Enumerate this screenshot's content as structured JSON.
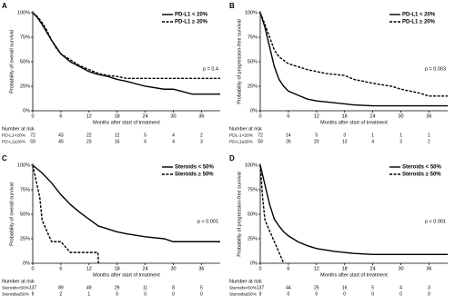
{
  "chart_data": [
    {
      "type": "line",
      "panel": "A",
      "ylabel": "Probability of overall survival",
      "xlabel": "Months after start of treatment",
      "xlim": [
        0,
        40
      ],
      "ylim": [
        0,
        100
      ],
      "xticks": [
        0,
        6,
        12,
        18,
        24,
        30,
        36
      ],
      "yticks": [
        {
          "value": 0,
          "label": "0%"
        },
        {
          "value": 25,
          "label": "25%"
        },
        {
          "value": 50,
          "label": "50%"
        },
        {
          "value": 75,
          "label": "75%"
        },
        {
          "value": 100,
          "label": "100%"
        }
      ],
      "legend": "upper right",
      "annotation": "p = 0.4",
      "series": [
        {
          "name": "PD-L1 < 20%",
          "color": "#000000",
          "dash": "solid",
          "x": [
            0,
            1,
            2,
            3,
            4,
            5,
            6,
            8,
            10,
            12,
            14,
            16,
            18,
            20,
            24,
            28,
            30,
            34,
            36,
            40
          ],
          "values": [
            100,
            95,
            88,
            80,
            72,
            65,
            58,
            50,
            45,
            40,
            37,
            35,
            32,
            30,
            25,
            22,
            22,
            17,
            17,
            17
          ]
        },
        {
          "name": "PD-L1 ≥ 20%",
          "color": "#000000",
          "dash": "dashed",
          "x": [
            0,
            1,
            2,
            3,
            4,
            5,
            6,
            8,
            10,
            12,
            14,
            16,
            18,
            20,
            24,
            30,
            36,
            40
          ],
          "values": [
            100,
            96,
            90,
            82,
            72,
            64,
            58,
            52,
            46,
            42,
            38,
            36,
            35,
            33,
            33,
            33,
            33,
            33
          ]
        }
      ],
      "risk_table": {
        "title": "Number at risk",
        "rows": [
          {
            "label": "PD-L1<20%",
            "values": [
              72,
              43,
              22,
              12,
              5,
              4,
              2
            ]
          },
          {
            "label": "PD-L1≥20%",
            "values": [
              59,
              40,
              23,
              16,
              6,
              4,
              3
            ]
          }
        ]
      }
    },
    {
      "type": "line",
      "panel": "B",
      "ylabel": "Probability of progression-free survival",
      "xlabel": "Months after start of treatment",
      "xlim": [
        0,
        40
      ],
      "ylim": [
        0,
        100
      ],
      "xticks": [
        0,
        6,
        12,
        18,
        24,
        30,
        36
      ],
      "yticks": [
        {
          "value": 0,
          "label": "0%"
        },
        {
          "value": 25,
          "label": "25%"
        },
        {
          "value": 50,
          "label": "50%"
        },
        {
          "value": 75,
          "label": "75%"
        },
        {
          "value": 100,
          "label": "100%"
        }
      ],
      "legend": "upper right",
      "annotation": "p = 0.003",
      "series": [
        {
          "name": "PD-L1 < 20%",
          "color": "#000000",
          "dash": "solid",
          "x": [
            0,
            1,
            2,
            3,
            4,
            5,
            6,
            8,
            10,
            12,
            16,
            20,
            24,
            30,
            36,
            40
          ],
          "values": [
            100,
            85,
            65,
            45,
            32,
            25,
            20,
            16,
            12,
            10,
            8,
            6,
            5,
            5,
            5,
            5
          ]
        },
        {
          "name": "PD-L1 ≥ 20%",
          "color": "#000000",
          "dash": "dashed",
          "x": [
            0,
            1,
            2,
            3,
            4,
            6,
            8,
            10,
            12,
            14,
            18,
            20,
            24,
            28,
            30,
            34,
            36,
            40
          ],
          "values": [
            100,
            88,
            75,
            62,
            55,
            48,
            45,
            42,
            40,
            38,
            36,
            32,
            28,
            25,
            22,
            18,
            15,
            15
          ]
        }
      ],
      "risk_table": {
        "title": "Number at risk",
        "rows": [
          {
            "label": "PDL-1<20%",
            "values": [
              72,
              14,
              5,
              3,
              1,
              1,
              1
            ]
          },
          {
            "label": "PD-L1≥20%",
            "values": [
              59,
              26,
              20,
              13,
              4,
              3,
              2
            ]
          }
        ]
      }
    },
    {
      "type": "line",
      "panel": "C",
      "ylabel": "Probability of overall survival",
      "xlabel": "Months after start of treatment",
      "xlim": [
        0,
        40
      ],
      "ylim": [
        0,
        100
      ],
      "xticks": [
        0,
        6,
        12,
        18,
        24,
        30,
        36
      ],
      "yticks": [
        {
          "value": 0,
          "label": "0%"
        },
        {
          "value": 25,
          "label": "25%"
        },
        {
          "value": 50,
          "label": "50%"
        },
        {
          "value": 75,
          "label": "75%"
        },
        {
          "value": 100,
          "label": "100%"
        }
      ],
      "legend": "upper right",
      "annotation": "p < 0.001",
      "series": [
        {
          "name": "Steroids < 50%",
          "color": "#000000",
          "dash": "solid",
          "x": [
            0,
            2,
            4,
            6,
            8,
            10,
            12,
            14,
            16,
            18,
            20,
            24,
            28,
            30,
            36,
            40
          ],
          "values": [
            100,
            92,
            82,
            70,
            60,
            52,
            45,
            38,
            35,
            32,
            30,
            27,
            25,
            22,
            22,
            22
          ]
        },
        {
          "name": "Steroids ≥ 50%",
          "color": "#000000",
          "dash": "dashed",
          "x": [
            0,
            1,
            1.5,
            2,
            3,
            4,
            6,
            8,
            13.9,
            14
          ],
          "values": [
            100,
            78,
            67,
            44,
            33,
            22,
            22,
            11,
            11,
            0
          ]
        }
      ],
      "risk_table": {
        "title": "Number at risk",
        "rows": [
          {
            "label": "Steroids<50%",
            "values": [
              137,
              89,
              49,
              29,
              11,
              8,
              5
            ]
          },
          {
            "label": "Steroids≥50%",
            "values": [
              9,
              2,
              1,
              0,
              0,
              0,
              0
            ]
          }
        ]
      }
    },
    {
      "type": "line",
      "panel": "D",
      "ylabel": "Probability of progression-free survival",
      "xlabel": "Months after start of treatment",
      "xlim": [
        0,
        40
      ],
      "ylim": [
        0,
        100
      ],
      "xticks": [
        0,
        6,
        12,
        18,
        24,
        30,
        36
      ],
      "yticks": [
        {
          "value": 0,
          "label": "0%"
        },
        {
          "value": 25,
          "label": "25%"
        },
        {
          "value": 50,
          "label": "50%"
        },
        {
          "value": 75,
          "label": "75%"
        },
        {
          "value": 100,
          "label": "100%"
        }
      ],
      "legend": "upper right",
      "annotation": "p < 0.001",
      "series": [
        {
          "name": "Steroids < 50%",
          "color": "#000000",
          "dash": "solid",
          "x": [
            0,
            1,
            2,
            3,
            4,
            5,
            6,
            8,
            10,
            12,
            16,
            20,
            24,
            28,
            30,
            36,
            40
          ],
          "values": [
            100,
            80,
            60,
            45,
            38,
            32,
            28,
            22,
            18,
            15,
            12,
            10,
            9,
            9,
            9,
            9,
            9
          ]
        },
        {
          "name": "Steroids ≥ 50%",
          "color": "#000000",
          "dash": "dashed",
          "x": [
            0,
            0.5,
            1,
            2,
            3,
            4,
            5
          ],
          "values": [
            100,
            67,
            44,
            33,
            22,
            11,
            0
          ]
        }
      ],
      "risk_table": {
        "title": "Number at risk",
        "rows": [
          {
            "label": "Steroids<50%",
            "values": [
              137,
              44,
              25,
              16,
              5,
              4,
              3
            ]
          },
          {
            "label": "Steroids≥50%",
            "values": [
              9,
              0,
              0,
              0,
              0,
              0,
              0
            ]
          }
        ]
      }
    }
  ]
}
